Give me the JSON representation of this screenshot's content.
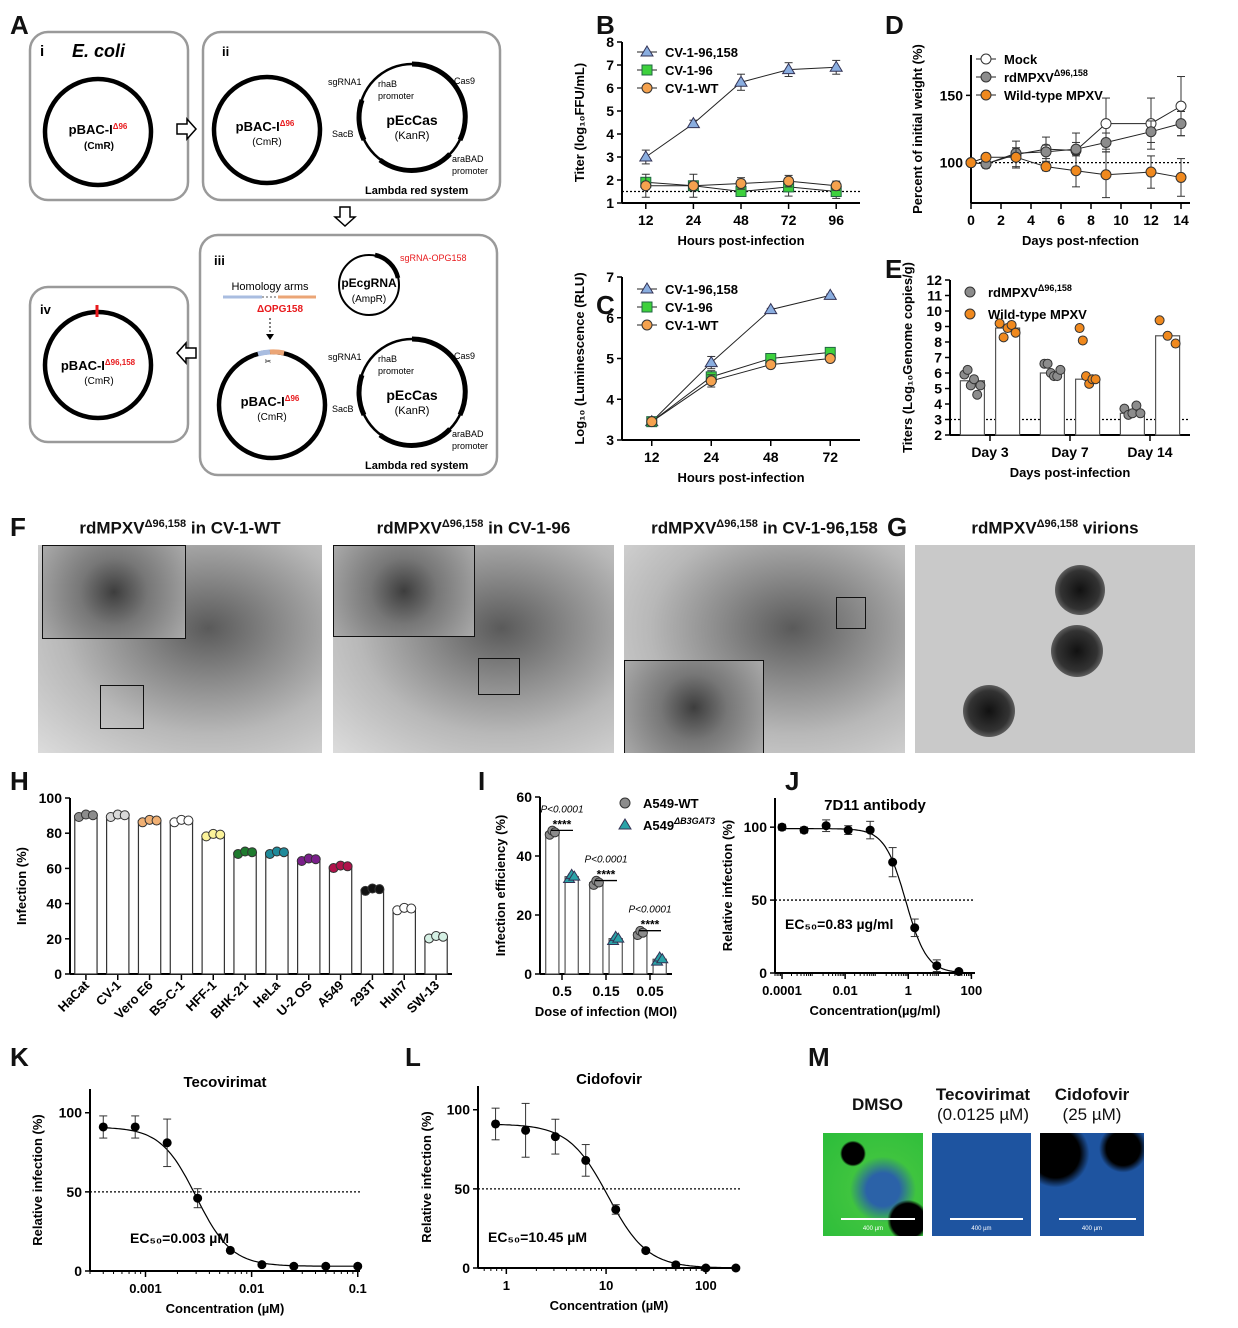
{
  "panel_letters": [
    "A",
    "B",
    "C",
    "D",
    "E",
    "F",
    "G",
    "H",
    "I",
    "J",
    "K",
    "L",
    "M"
  ],
  "panel_a": {
    "box_i": {
      "numeral": "i",
      "organism": "E. coli",
      "plasmid": "pBAC-I",
      "plasmid_sup": "Δ96",
      "marker": "(CmR)"
    },
    "box_ii": {
      "numeral": "ii",
      "plasmid": "pBAC-I",
      "plasmid_sup": "Δ96",
      "marker": "(CmR)",
      "cas_plasmid": "pEcCas",
      "cas_marker": "(KanR)",
      "sgrna1": "sgRNA1",
      "rhab": "rhaB",
      "rhab_promoter": "promoter",
      "cas9": "Cas9",
      "sacb": "SacB",
      "arabad": "araBAD",
      "arabad_promoter": "promoter",
      "system": "Lambda red system"
    },
    "box_iii": {
      "numeral": "iii",
      "homology": "Homology arms",
      "deletion": "ΔOPG158",
      "grna_plasmid": "pEcgRNA",
      "grna_marker": "(AmpR)",
      "sgrna_target": "sgRNA-OPG158",
      "plasmid": "pBAC-I",
      "plasmid_sup": "Δ96",
      "marker": "(CmR)",
      "cas_plasmid": "pEcCas",
      "cas_marker": "(KanR)",
      "sgrna1": "sgRNA1",
      "rhab": "rhaB",
      "rhab_promoter": "promoter",
      "cas9": "Cas9",
      "sacb": "SacB",
      "arabad": "araBAD",
      "arabad_promoter": "promoter",
      "system": "Lambda red system"
    },
    "box_iv": {
      "numeral": "iv",
      "plasmid": "pBAC-I",
      "plasmid_sup": "Δ96,158",
      "marker": "(CmR)"
    }
  },
  "panel_f": {
    "titles": [
      {
        "prefix": "rdMPXV",
        "sup": "Δ96,158",
        "suffix": " in CV-1-WT"
      },
      {
        "prefix": "rdMPXV",
        "sup": "Δ96,158",
        "suffix": " in CV-1-96"
      },
      {
        "prefix": "rdMPXV",
        "sup": "Δ96,158",
        "suffix": " in CV-1-96,158"
      }
    ]
  },
  "panel_g": {
    "prefix": "rdMPXV",
    "sup": "Δ96,158",
    "suffix": " virions"
  },
  "panel_m": {
    "conditions": [
      {
        "name": "DMSO",
        "dose": ""
      },
      {
        "name": "Tecovirimat",
        "dose": "(0.0125 µM)"
      },
      {
        "name": "Cidofovir",
        "dose": "(25 µM)"
      }
    ],
    "scale_bar": "400 µm"
  },
  "colors": {
    "blue_tri": "#8aaee0",
    "green_sq": "#3dd13d",
    "orange": "#f5a24e",
    "wt_orange": "#f0891e",
    "gray": "#8c8c8c",
    "red": "#e8191c",
    "arm_blue": "#a9bde0",
    "arm_orange": "#eba576"
  },
  "chart_data": [
    {
      "id": "B",
      "type": "line",
      "x": [
        "12",
        "24",
        "48",
        "72",
        "96"
      ],
      "xlabel": "Hours post-infection",
      "ylabel": "Titer (log₁₀FFU/mL)",
      "ylim": [
        1,
        8
      ],
      "yticks": [
        1,
        2,
        3,
        4,
        5,
        6,
        7,
        8
      ],
      "reference_line": 1.5,
      "series": [
        {
          "name": "CV-1-96,158",
          "marker": "triangle",
          "color": "#8aaee0",
          "values": [
            3.0,
            4.45,
            6.25,
            6.8,
            6.9
          ],
          "err": [
            0.3,
            0.15,
            0.35,
            0.3,
            0.3
          ]
        },
        {
          "name": "CV-1-96",
          "marker": "square",
          "color": "#3dd13d",
          "values": [
            1.9,
            1.75,
            1.5,
            1.7,
            1.5
          ],
          "err": [
            0.1,
            0.2,
            0.05,
            0.4,
            0.3
          ]
        },
        {
          "name": "CV-1-WT",
          "marker": "circle",
          "color": "#f5a24e",
          "values": [
            1.75,
            1.75,
            1.85,
            1.95,
            1.75
          ],
          "err": [
            0.5,
            0.5,
            0.25,
            0.25,
            0.2
          ]
        }
      ]
    },
    {
      "id": "C",
      "type": "line",
      "x": [
        "12",
        "24",
        "48",
        "72"
      ],
      "xlabel": "Hours post-infection",
      "ylabel": "Log₁₀ (Luminescence (RLU)",
      "ylim": [
        3,
        7
      ],
      "yticks": [
        3,
        4,
        5,
        6,
        7
      ],
      "series": [
        {
          "name": "CV-1-96,158",
          "marker": "triangle",
          "color": "#8aaee0",
          "values": [
            3.45,
            4.9,
            6.2,
            6.55
          ],
          "err": [
            0.05,
            0.15,
            0.03,
            0.03
          ]
        },
        {
          "name": "CV-1-96",
          "marker": "square",
          "color": "#3dd13d",
          "values": [
            3.45,
            4.55,
            5.0,
            5.15
          ],
          "err": [
            0.05,
            0.15,
            0.1,
            0.1
          ]
        },
        {
          "name": "CV-1-WT",
          "marker": "circle",
          "color": "#f5a24e",
          "values": [
            3.45,
            4.45,
            4.85,
            5.0
          ],
          "err": [
            0.05,
            0.15,
            0.08,
            0.08
          ]
        }
      ]
    },
    {
      "id": "D",
      "type": "line",
      "x": [
        0,
        1,
        3,
        5,
        7,
        9,
        12,
        14
      ],
      "xlabel": "Days post-nfection",
      "ylabel": "Percent of initial weight (%)",
      "xlim": [
        0,
        14.6
      ],
      "xticks": [
        0,
        2,
        4,
        6,
        8,
        10,
        12,
        14
      ],
      "ylim": [
        70,
        180
      ],
      "yticks": [
        100,
        150
      ],
      "reference_line": 100,
      "series": [
        {
          "name": "Mock",
          "sup": "",
          "marker": "circle",
          "color": "#ffffff",
          "values": [
            100,
            99,
            106,
            110,
            109,
            129,
            129,
            142
          ],
          "err": [
            0,
            3,
            10,
            9,
            13,
            19,
            19,
            22
          ]
        },
        {
          "name": "rdMPXV",
          "sup": "Δ96,158",
          "marker": "circle",
          "color": "#8c8c8c",
          "values": [
            100,
            99,
            107,
            108,
            110,
            115,
            123,
            129
          ],
          "err": [
            0,
            3,
            4,
            5,
            5,
            7,
            8,
            9
          ]
        },
        {
          "name": "Wild-type MPXV",
          "sup": "",
          "marker": "circle",
          "color": "#f0891e",
          "values": [
            100,
            104,
            104,
            97,
            94,
            91,
            93,
            89
          ],
          "err": [
            0,
            2,
            7,
            3,
            12,
            17,
            12,
            14
          ]
        }
      ]
    },
    {
      "id": "E",
      "type": "bar",
      "categories": [
        "Day 3",
        "Day 7",
        "Day 14"
      ],
      "xlabel": "Days post-infection",
      "ylabel": "Titers (Log₁₀Genome copies/g)",
      "ylim": [
        2,
        12
      ],
      "yticks": [
        2,
        3,
        4,
        5,
        6,
        7,
        8,
        9,
        10,
        11,
        12
      ],
      "reference_line": 3,
      "series": [
        {
          "name": "rdMPXV",
          "sup": "Δ96,158",
          "color": "#8c8c8c",
          "values": [
            5.5,
            6.0,
            3.4
          ],
          "points": [
            [
              5.9,
              6.2,
              5.2,
              5.6,
              4.6,
              5.2
            ],
            [
              6.6,
              6.6,
              6.0,
              5.8,
              5.8,
              6.2
            ],
            [
              3.7,
              3.3,
              3.4,
              3.9,
              3.4
            ]
          ]
        },
        {
          "name": "Wild-type MPXV",
          "sup": "",
          "color": "#f0891e",
          "values": [
            8.9,
            5.6,
            8.4
          ],
          "points": [
            [
              9.2,
              8.3,
              8.9,
              9.1,
              8.6
            ],
            [
              8.9,
              8.1,
              5.8,
              5.3,
              5.6,
              5.6
            ],
            [
              9.4,
              8.4,
              7.9
            ]
          ]
        }
      ]
    },
    {
      "id": "H",
      "type": "bar",
      "categories": [
        "HaCat",
        "CV-1",
        "Vero E6",
        "BS-C-1",
        "HFF-1",
        "BHK-21",
        "HeLa",
        "U-2 OS",
        "A549",
        "293T",
        "Huh7",
        "SW-13"
      ],
      "xlabel": "",
      "ylabel": "Infection (%)",
      "ylim": [
        0,
        100
      ],
      "yticks": [
        0,
        20,
        40,
        60,
        80,
        100
      ],
      "values": [
        90,
        90,
        87,
        87,
        79,
        69,
        69,
        65,
        61,
        48,
        37,
        21
      ],
      "colors": [
        "#8c8c8c",
        "#d9d9d9",
        "#f0b074",
        "#ffffff",
        "#fbf39a",
        "#1e7a2e",
        "#1f8a9a",
        "#7a1f8a",
        "#b0124a",
        "#111111",
        "#ffffff",
        "#d5f0e4"
      ]
    },
    {
      "id": "I",
      "type": "bar",
      "categories": [
        "0.5",
        "0.15",
        "0.05"
      ],
      "xlabel": "Dose of infection (MOI)",
      "ylabel": "Infection efficiency (%)",
      "ylim": [
        0,
        60
      ],
      "yticks": [
        0,
        20,
        40,
        60
      ],
      "series": [
        {
          "name": "A549-WT",
          "sup": "",
          "marker": "circle",
          "color": "#8c8c8c",
          "values": [
            48,
            31,
            14
          ]
        },
        {
          "name": "A549",
          "sup": "ΔB3GAT3",
          "marker": "triangle",
          "color": "#2aa3a8",
          "values": [
            33,
            12,
            5
          ]
        }
      ],
      "annotations": [
        {
          "p": "P<0.0001",
          "stars": "****"
        },
        {
          "p": "P<0.0001",
          "stars": "****"
        },
        {
          "p": "P<0.0001",
          "stars": "****"
        }
      ]
    },
    {
      "id": "J",
      "type": "scatter",
      "title": "7D11 antibody",
      "xlabel": "Concentration(µg/ml)",
      "ylabel": "Relative infection (%)",
      "xscale": "log",
      "xlim": [
        6e-05,
        130
      ],
      "xticks": [
        0.0001,
        0.01,
        1,
        100
      ],
      "xticklabels": [
        "0.0001",
        "0.01",
        "1",
        "100"
      ],
      "ylim": [
        0,
        120
      ],
      "yticks": [
        0,
        50,
        100
      ],
      "reference_line": 50,
      "x": [
        0.0001,
        0.0005,
        0.0025,
        0.0125,
        0.062,
        0.32,
        1.6,
        8,
        40
      ],
      "y": [
        100,
        98,
        101,
        98,
        98,
        76,
        31,
        5,
        1
      ],
      "err": [
        2,
        2,
        4,
        3,
        6,
        10,
        6,
        4,
        1
      ],
      "fit": {
        "top": 99,
        "bottom": 0,
        "ec50": 0.83,
        "hill": 1.3
      },
      "annotation": "EC₅₀=0.83 µg/ml"
    },
    {
      "id": "K",
      "type": "scatter",
      "title": "Tecovirimat",
      "xlabel": "Concentration (µM)",
      "ylabel": "Relative infection (%)",
      "xscale": "log",
      "xlim": [
        0.0003,
        0.105
      ],
      "xticks": [
        0.001,
        0.01,
        0.1
      ],
      "xticklabels": [
        "0.001",
        "0.01",
        "0.1"
      ],
      "ylim": [
        0,
        115
      ],
      "yticks": [
        0,
        50,
        100
      ],
      "reference_line": 50,
      "x": [
        0.0004,
        0.0008,
        0.0016,
        0.0031,
        0.0063,
        0.0125,
        0.025,
        0.05,
        0.1
      ],
      "y": [
        91,
        91,
        81,
        46,
        13,
        4,
        3,
        3,
        3
      ],
      "err": [
        7,
        7,
        15,
        6,
        1,
        1,
        1,
        1,
        1
      ],
      "fit": {
        "top": 91,
        "bottom": 3,
        "ec50": 0.003,
        "hill": 2.6
      },
      "annotation": "EC₅₀=0.003 µM"
    },
    {
      "id": "L",
      "type": "scatter",
      "title": "Cidofovir",
      "xlabel": "Concentration (µM)",
      "ylabel": "Relative infection (%)",
      "xscale": "log",
      "xlim": [
        0.52,
        220
      ],
      "xticks": [
        1,
        10,
        100
      ],
      "xticklabels": [
        "1",
        "10",
        "100"
      ],
      "ylim": [
        0,
        115
      ],
      "yticks": [
        0,
        50,
        100
      ],
      "reference_line": 50,
      "x": [
        0.78,
        1.56,
        3.1,
        6.25,
        12.5,
        25,
        50,
        100,
        200
      ],
      "y": [
        91,
        87,
        83,
        68,
        37,
        11,
        2,
        0,
        0
      ],
      "err": [
        10,
        17,
        11,
        10,
        3,
        1,
        1,
        0,
        0
      ],
      "fit": {
        "top": 91,
        "bottom": 0,
        "ec50": 10.45,
        "hill": 2.2
      },
      "annotation": "EC₅₀=10.45 µM"
    }
  ]
}
